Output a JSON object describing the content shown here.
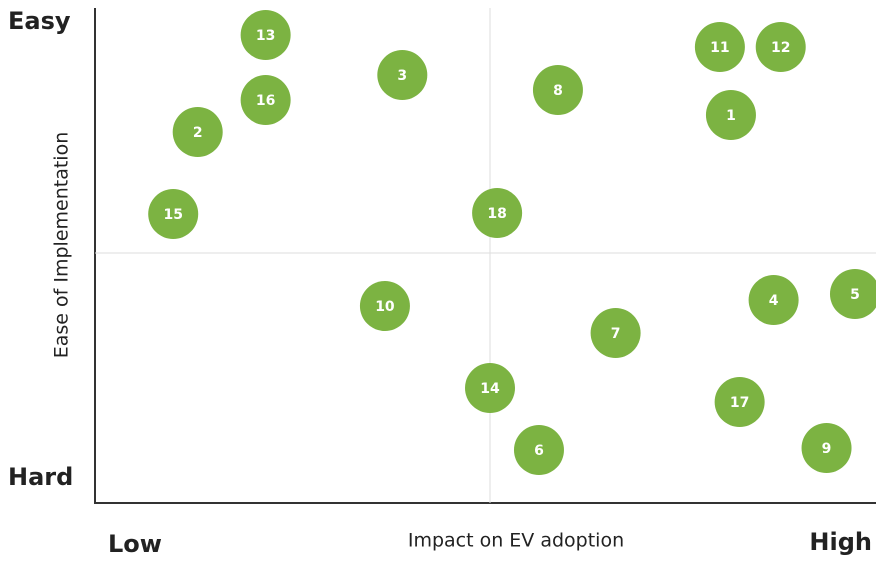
{
  "chart_data": {
    "type": "scatter",
    "x_label": "Impact on EV adoption",
    "y_label": "Ease of Implementation",
    "x_low": "Low",
    "x_high": "High",
    "y_high": "Easy",
    "y_low": "Hard",
    "labels": [
      "1",
      "2",
      "3",
      "4",
      "5",
      "6",
      "7",
      "8",
      "9",
      "10",
      "11",
      "12",
      "13",
      "14",
      "15",
      "16",
      "17",
      "18"
    ],
    "x": [
      80.5,
      13.0,
      38.9,
      85.9,
      96.2,
      56.2,
      65.9,
      58.6,
      92.6,
      36.7,
      79.1,
      86.8,
      21.6,
      50.0,
      9.9,
      21.6,
      81.6,
      50.9
    ],
    "y": [
      77.6,
      74.2,
      85.6,
      40.6,
      41.8,
      10.6,
      34.0,
      82.6,
      11.0,
      39.4,
      91.2,
      91.2,
      93.6,
      23.0,
      57.8,
      80.6,
      20.2,
      58.0
    ],
    "xlim": [
      0,
      100
    ],
    "ylim": [
      0,
      100
    ],
    "color": "#7cb342"
  }
}
